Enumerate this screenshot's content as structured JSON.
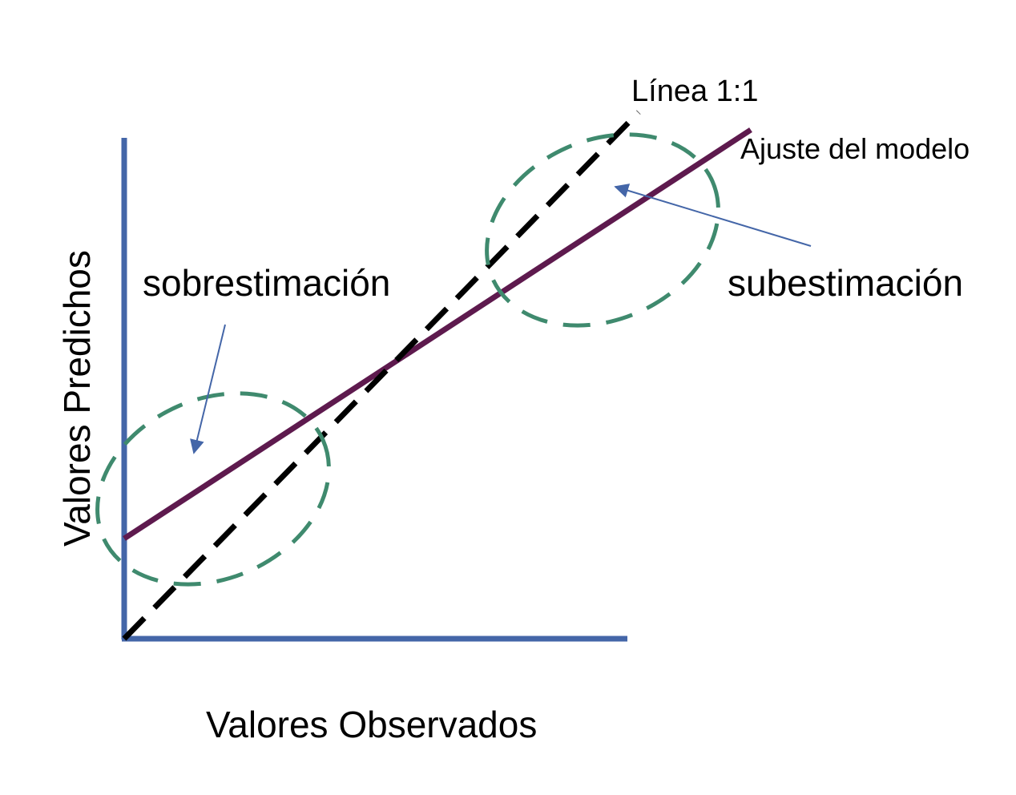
{
  "diagram": {
    "x_axis_label": "Valores Observados",
    "y_axis_label": "Valores Predichos",
    "identity_line_label": "Línea 1:1",
    "model_fit_label": "Ajuste del modelo",
    "overestimation_label": "sobrestimación",
    "underestimation_label": "subestimación"
  },
  "colors": {
    "axes": "#4466a8",
    "identity_line": "#000000",
    "model_fit_line": "#5e1a4e",
    "ellipses": "#3f8a6e",
    "annotation_arrows": "#4466a8"
  }
}
